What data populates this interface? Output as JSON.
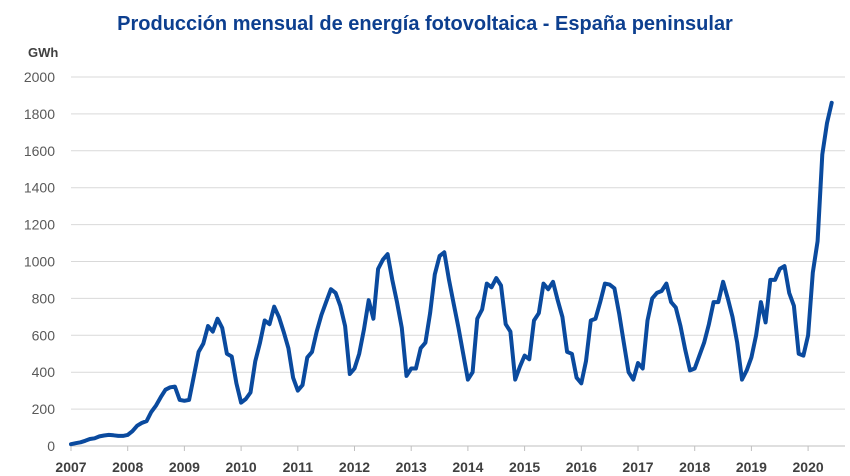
{
  "chart_data": {
    "type": "line",
    "title": "Producción mensual de energía fotovoltaica - España peninsular",
    "ylabel": "GWh",
    "xlabel": "",
    "ylim": [
      0,
      2000
    ],
    "yticks": [
      0,
      200,
      400,
      600,
      800,
      1000,
      1200,
      1400,
      1600,
      1800,
      2000
    ],
    "xticks": [
      "2007",
      "2008",
      "2009",
      "2010",
      "2011",
      "2012",
      "2013",
      "2014",
      "2015",
      "2016",
      "2017",
      "2018",
      "2019",
      "2020"
    ],
    "x_start": "2007-01",
    "frequency": "monthly",
    "grid": "horizontal",
    "colors": {
      "line": "#0a4a9e",
      "title": "#0d3f8f",
      "grid": "#d9d9d9",
      "axis_text": "#595959"
    },
    "values": [
      10,
      15,
      20,
      28,
      38,
      42,
      52,
      57,
      60,
      58,
      55,
      55,
      60,
      80,
      110,
      125,
      135,
      185,
      220,
      265,
      305,
      318,
      322,
      250,
      245,
      250,
      380,
      510,
      555,
      650,
      620,
      690,
      640,
      500,
      485,
      340,
      235,
      255,
      290,
      460,
      560,
      680,
      660,
      755,
      700,
      620,
      530,
      370,
      300,
      330,
      480,
      510,
      620,
      710,
      780,
      850,
      830,
      760,
      650,
      390,
      420,
      500,
      630,
      790,
      690,
      960,
      1010,
      1040,
      900,
      780,
      640,
      380,
      420,
      420,
      530,
      560,
      720,
      930,
      1030,
      1050,
      900,
      770,
      640,
      500,
      360,
      400,
      690,
      740,
      880,
      860,
      910,
      870,
      660,
      620,
      360,
      430,
      490,
      470,
      680,
      720,
      880,
      850,
      890,
      790,
      700,
      510,
      500,
      370,
      340,
      460,
      680,
      690,
      780,
      880,
      875,
      855,
      720,
      560,
      400,
      360,
      450,
      420,
      680,
      800,
      830,
      840,
      880,
      780,
      750,
      650,
      520,
      410,
      420,
      490,
      560,
      660,
      780,
      780,
      890,
      800,
      700,
      560,
      360,
      410,
      480,
      600,
      780,
      670,
      900,
      900,
      960,
      975,
      830,
      760,
      500,
      490,
      600,
      940,
      1110,
      1580,
      1750,
      1860
    ]
  }
}
